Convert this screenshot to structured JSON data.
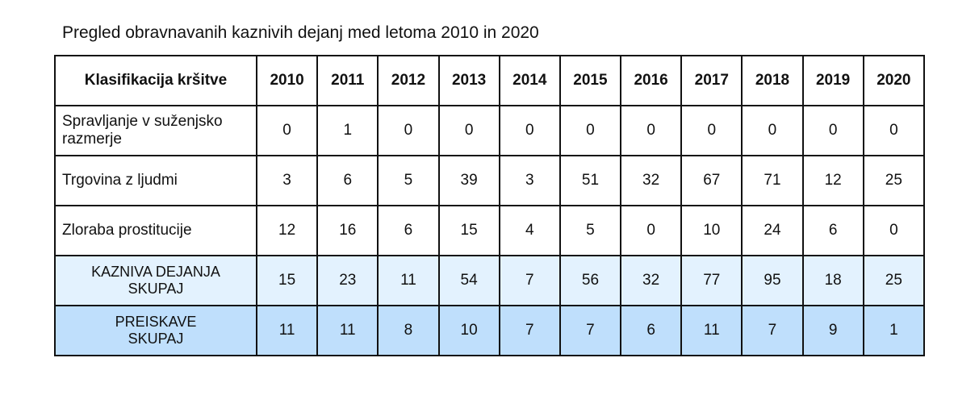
{
  "title": "Pregled obravnavanih kaznivih dejanj med letoma 2010 in 2020",
  "table": {
    "header_label": "Klasifikacija kršitve",
    "years": [
      "2010",
      "2011",
      "2012",
      "2013",
      "2014",
      "2015",
      "2016",
      "2017",
      "2018",
      "2019",
      "2020"
    ],
    "rows": [
      {
        "label_line1": "Spravljanje v suženjsko",
        "label_line2": "razmerje",
        "values": [
          "0",
          "1",
          "0",
          "0",
          "0",
          "0",
          "0",
          "0",
          "0",
          "0",
          "0"
        ]
      },
      {
        "label_line1": "Trgovina z ljudmi",
        "label_line2": "",
        "values": [
          "3",
          "6",
          "5",
          "39",
          "3",
          "51",
          "32",
          "67",
          "71",
          "12",
          "25"
        ]
      },
      {
        "label_line1": "Zloraba prostitucije",
        "label_line2": "",
        "values": [
          "12",
          "16",
          "6",
          "15",
          "4",
          "5",
          "0",
          "10",
          "24",
          "6",
          "0"
        ]
      },
      {
        "label_line1": "KAZNIVA DEJANJA",
        "label_line2": "SKUPAJ",
        "values": [
          "15",
          "23",
          "11",
          "54",
          "7",
          "56",
          "32",
          "77",
          "95",
          "18",
          "25"
        ],
        "fill": "#e3f2fe"
      },
      {
        "label_line1": "PREISKAVE",
        "label_line2": "SKUPAJ",
        "values": [
          "11",
          "11",
          "8",
          "10",
          "7",
          "7",
          "6",
          "11",
          "7",
          "9",
          "1"
        ],
        "fill": "#bfdffc"
      }
    ]
  }
}
